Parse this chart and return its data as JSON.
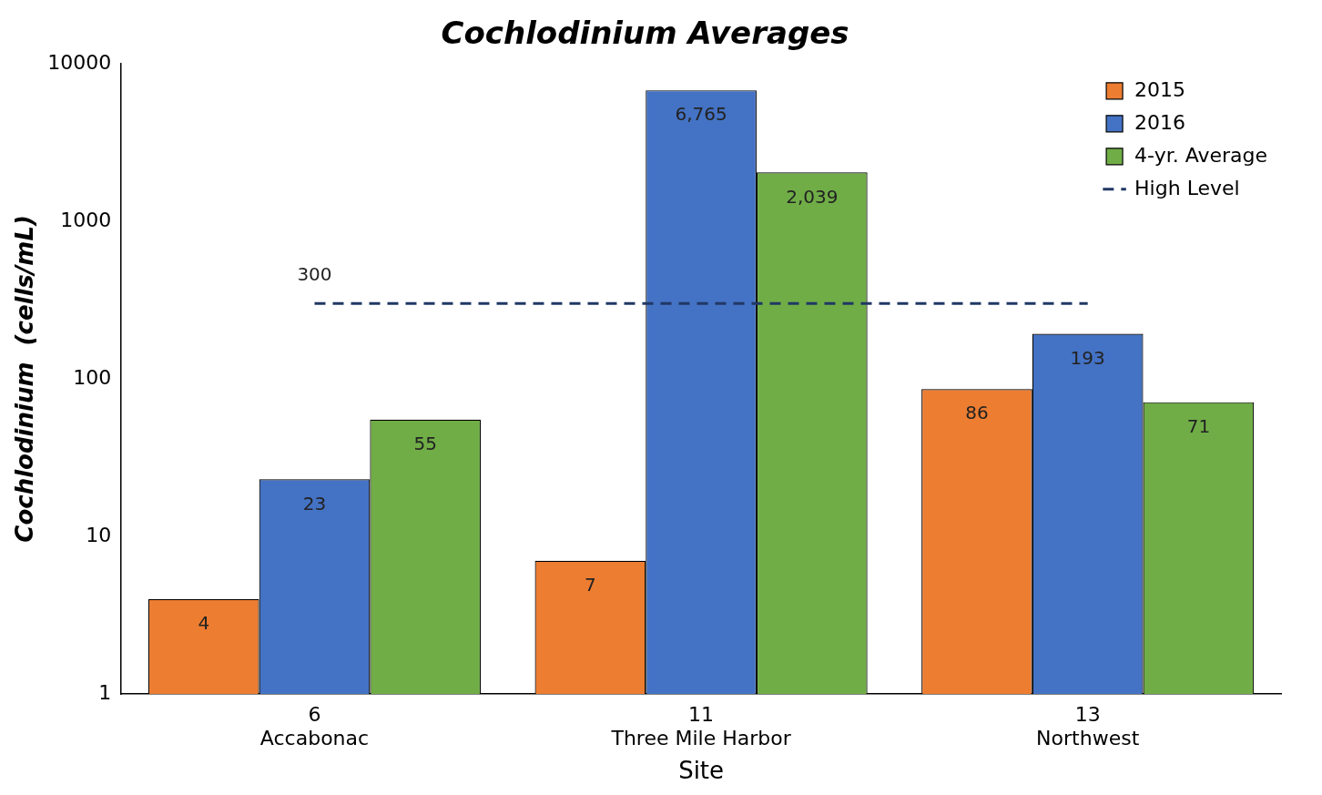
{
  "chart_data": {
    "type": "bar",
    "title": "Cochlodinium Averages",
    "xlabel": "Site",
    "ylabel": "Cochlodinium  (cells/mL)",
    "categories": [
      "6\nAccabonac",
      "11\nThree Mile Harbor",
      "13\nNorthwest"
    ],
    "series": [
      {
        "name": "2015",
        "color": "#ed7d31",
        "values": [
          4,
          7,
          86
        ],
        "value_labels": [
          "4",
          "7",
          "86"
        ]
      },
      {
        "name": "2016",
        "color": "#4472c4",
        "values": [
          23,
          6765,
          193
        ],
        "value_labels": [
          "23",
          "6,765",
          "193"
        ]
      },
      {
        "name": "4-yr. Average",
        "color": "#70ad47",
        "values": [
          55,
          2039,
          71
        ],
        "value_labels": [
          "55",
          "2,039",
          "71"
        ]
      },
      {
        "name": "High Level",
        "type": "line",
        "color": "#203864",
        "line_style": "dashed",
        "values": [
          300,
          300,
          300
        ],
        "value_labels": [
          "300",
          null,
          null
        ]
      }
    ],
    "log": true,
    "ylim": [
      1,
      10000
    ],
    "yticks": [
      1,
      10,
      100,
      1000,
      10000
    ],
    "grid": false,
    "legend": "top right"
  }
}
